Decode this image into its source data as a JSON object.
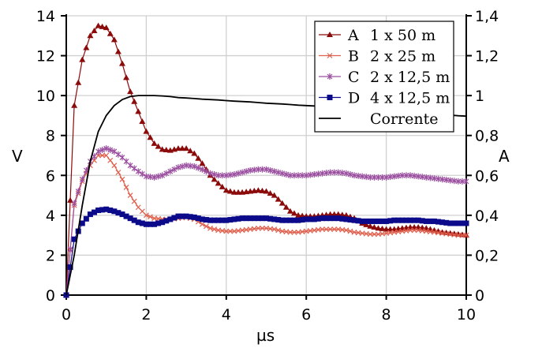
{
  "chart_data": {
    "type": "line",
    "xlabel": "µs",
    "ylabel": "V",
    "y2label": "A",
    "xlim": [
      0,
      10
    ],
    "ylim": [
      0,
      14
    ],
    "y2lim": [
      0,
      1.4
    ],
    "grid": true,
    "legend_position": "top-right",
    "x_ticks": [
      "0",
      "2",
      "4",
      "6",
      "8",
      "10"
    ],
    "y_ticks": [
      "0",
      "2",
      "4",
      "6",
      "8",
      "10",
      "12",
      "14"
    ],
    "y2_ticks": [
      "0",
      "0,2",
      "0,4",
      "0,6",
      "0,8",
      "1",
      "1,2",
      "1,4"
    ],
    "x": [
      0,
      0.2,
      0.4,
      0.6,
      0.8,
      1.0,
      1.2,
      1.4,
      1.6,
      1.8,
      2.0,
      2.2,
      2.4,
      2.6,
      2.8,
      3.0,
      3.2,
      3.4,
      3.6,
      3.8,
      4.0,
      4.2,
      4.4,
      4.6,
      4.8,
      5.0,
      5.2,
      5.4,
      5.6,
      5.8,
      6.0,
      6.2,
      6.4,
      6.6,
      6.8,
      7.0,
      7.2,
      7.4,
      7.6,
      7.8,
      8.0,
      8.2,
      8.4,
      8.6,
      8.8,
      9.0,
      9.2,
      9.4,
      9.6,
      9.8,
      10.0
    ],
    "series": [
      {
        "key": "A",
        "name": "1 x 50 m",
        "axis": "left",
        "marker": "triangle",
        "color": "#8b0a0a",
        "values": [
          0,
          9.5,
          11.8,
          13.0,
          13.5,
          13.4,
          12.8,
          11.6,
          10.2,
          9.2,
          8.2,
          7.6,
          7.3,
          7.25,
          7.35,
          7.35,
          7.1,
          6.6,
          6.0,
          5.6,
          5.25,
          5.15,
          5.15,
          5.2,
          5.25,
          5.2,
          5.0,
          4.6,
          4.2,
          4.0,
          3.95,
          3.95,
          4.0,
          4.05,
          4.05,
          4.0,
          3.85,
          3.6,
          3.45,
          3.35,
          3.3,
          3.3,
          3.35,
          3.4,
          3.4,
          3.35,
          3.25,
          3.15,
          3.1,
          3.05,
          3.0
        ]
      },
      {
        "key": "B",
        "name": "2 x 25 m",
        "axis": "left",
        "marker": "x",
        "color": "#e0604e",
        "values": [
          0,
          4.5,
          5.7,
          6.5,
          7.0,
          7.0,
          6.5,
          5.8,
          5.0,
          4.4,
          4.0,
          3.85,
          3.8,
          3.8,
          3.85,
          3.9,
          3.8,
          3.55,
          3.35,
          3.25,
          3.2,
          3.2,
          3.25,
          3.3,
          3.35,
          3.35,
          3.3,
          3.2,
          3.15,
          3.15,
          3.2,
          3.25,
          3.3,
          3.3,
          3.3,
          3.25,
          3.15,
          3.1,
          3.05,
          3.05,
          3.1,
          3.15,
          3.2,
          3.25,
          3.25,
          3.2,
          3.15,
          3.1,
          3.05,
          3.0,
          3.0
        ]
      },
      {
        "key": "C",
        "name": "2 x 12,5 m",
        "axis": "left",
        "marker": "star",
        "color": "#9b4fa0",
        "values": [
          0,
          4.6,
          5.8,
          6.7,
          7.2,
          7.35,
          7.2,
          6.9,
          6.5,
          6.2,
          5.95,
          5.9,
          6.0,
          6.2,
          6.4,
          6.5,
          6.45,
          6.3,
          6.1,
          6.0,
          6.0,
          6.05,
          6.15,
          6.25,
          6.3,
          6.3,
          6.2,
          6.1,
          6.0,
          6.0,
          6.0,
          6.05,
          6.1,
          6.15,
          6.15,
          6.1,
          6.0,
          5.95,
          5.9,
          5.9,
          5.9,
          5.95,
          6.0,
          6.0,
          5.95,
          5.9,
          5.85,
          5.8,
          5.75,
          5.7,
          5.7
        ]
      },
      {
        "key": "D",
        "name": "4 x 12,5 m",
        "axis": "left",
        "marker": "square",
        "color": "#0a0a8b",
        "values": [
          0,
          2.8,
          3.6,
          4.05,
          4.25,
          4.3,
          4.2,
          4.05,
          3.85,
          3.65,
          3.55,
          3.55,
          3.65,
          3.8,
          3.95,
          3.95,
          3.9,
          3.8,
          3.75,
          3.75,
          3.75,
          3.8,
          3.85,
          3.85,
          3.85,
          3.85,
          3.8,
          3.75,
          3.75,
          3.75,
          3.8,
          3.8,
          3.85,
          3.85,
          3.85,
          3.8,
          3.75,
          3.7,
          3.7,
          3.7,
          3.7,
          3.75,
          3.75,
          3.75,
          3.75,
          3.7,
          3.7,
          3.65,
          3.6,
          3.6,
          3.6
        ]
      },
      {
        "key": "",
        "name": "Corrente",
        "axis": "right",
        "marker": "none",
        "color": "#000000",
        "values": [
          0,
          0.2,
          0.45,
          0.67,
          0.82,
          0.9,
          0.95,
          0.98,
          0.995,
          1.0,
          1.0,
          1.0,
          0.998,
          0.995,
          0.99,
          0.988,
          0.985,
          0.982,
          0.98,
          0.978,
          0.975,
          0.972,
          0.97,
          0.968,
          0.965,
          0.962,
          0.96,
          0.958,
          0.955,
          0.952,
          0.95,
          0.948,
          0.945,
          0.942,
          0.94,
          0.938,
          0.935,
          0.932,
          0.93,
          0.928,
          0.925,
          0.922,
          0.92,
          0.917,
          0.914,
          0.911,
          0.908,
          0.905,
          0.902,
          0.899,
          0.897
        ]
      }
    ]
  }
}
